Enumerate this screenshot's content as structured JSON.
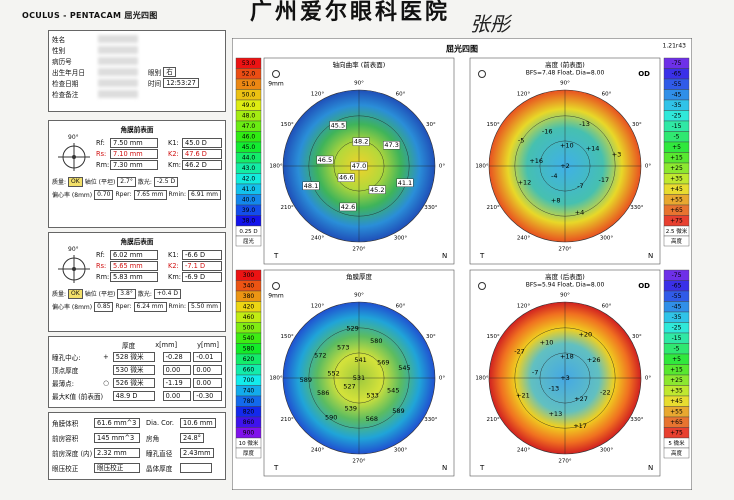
{
  "header": {
    "brand": "OCULUS - PENTACAM",
    "subtitle": "屈光四图",
    "hospital": "广州爱尔眼科医院",
    "signature": "张彤"
  },
  "patient": {
    "labels": [
      "姓名",
      "性别",
      "病历号",
      "出生年月日",
      "检查日期",
      "检查备注"
    ],
    "eye_label": "眼别",
    "eye": "右",
    "time_label": "时间",
    "time": "12:53:27"
  },
  "anterior": {
    "title": "角膜前表面",
    "axis": "90°",
    "rows": [
      [
        "Rf:",
        "7.50 mm",
        "K1:",
        "45.0 D"
      ],
      [
        "Rs:",
        "7.10 mm",
        "K2:",
        "47.6 D"
      ],
      [
        "Rm:",
        "7.30 mm",
        "Km:",
        "46.2 D"
      ],
      [
        "质量:",
        "OK",
        "轴位 (平坦)",
        "2.7°",
        "散光:",
        "-2.5 D"
      ],
      [
        "偏心率 (8mm)",
        "0.70",
        "Rper:",
        "7.65 mm",
        "Rmin:",
        "6.91 mm"
      ]
    ]
  },
  "posterior": {
    "title": "角膜后表面",
    "axis": "90°",
    "rows": [
      [
        "Rf:",
        "6.02 mm",
        "K1:",
        "-6.6 D"
      ],
      [
        "Rs:",
        "5.65 mm",
        "K2:",
        "-7.1 D"
      ],
      [
        "Rm:",
        "5.83 mm",
        "Km:",
        "-6.9 D"
      ],
      [
        "质量:",
        "OK",
        "轴位 (平坦)",
        "3.8°",
        "散光:",
        "+0.4 D"
      ],
      [
        "偏心率 (8mm)",
        "0.85",
        "Rper:",
        "6.24 mm",
        "Rmin:",
        "5.50 mm"
      ]
    ]
  },
  "pachymetry": {
    "header": [
      "厚度",
      "x[mm]",
      "y[mm]"
    ],
    "rows": [
      [
        "瞳孔中心:",
        "+",
        "528 微米",
        "-0.28",
        "-0.01"
      ],
      [
        "顶点厚度",
        "530 微米",
        "0.00",
        "0.00"
      ],
      [
        "最薄点:",
        "○",
        "526 微米",
        "-1.19",
        "0.00"
      ],
      [
        "最大K值 (前表面)",
        "48.9 D",
        "0.00",
        "-0.30"
      ]
    ]
  },
  "volumes": {
    "rows": [
      [
        "角膜体积",
        "61.6 mm^3",
        "Dia. Cor.",
        "10.6 mm"
      ],
      [
        "前房容积",
        "145 mm^3",
        "房角",
        "24.8°"
      ],
      [
        "前房深度 (内)",
        "2.32 mm",
        "瞳孔直径",
        "2.43mm"
      ],
      [
        "眼压校正",
        "眼压校正",
        "晶体厚度"
      ]
    ]
  },
  "display": {
    "title": "屈光四图",
    "version": "1.21r43",
    "compass": [
      "90°",
      "60°",
      "30°",
      "0°",
      "330°",
      "300°",
      "270°",
      "240°",
      "210°",
      "180°",
      "150°",
      "120°"
    ],
    "maps": [
      {
        "title": "轴向曲率 (前表面)",
        "zoom": "9mm",
        "left": "T",
        "right": "N",
        "scale": [
          "53.0",
          "52.0",
          "51.0",
          "50.0",
          "49.0",
          "48.0",
          "47.0",
          "46.0",
          "45.0",
          "44.0",
          "43.0",
          "42.0",
          "41.0",
          "40.0",
          "39.0",
          "38.0"
        ],
        "scale_notes": [
          "0.25 D",
          "屈光"
        ],
        "labels": [
          "47.0",
          "46.6",
          "48.2",
          "45.2",
          "46.5",
          "47.3",
          "42.6",
          "45.5",
          "41.1",
          "48.1"
        ]
      },
      {
        "title": "高度 (前表面)",
        "eye": "OD",
        "left": "T",
        "right": "N",
        "info": "BFS=7.48 Float, Dia=8.00",
        "scale": [
          "-75",
          "-65",
          "-55",
          "-45",
          "-35",
          "-25",
          "-15",
          "-5",
          "+5",
          "+15",
          "+25",
          "+35",
          "+45",
          "+55",
          "+65",
          "+75"
        ],
        "scale_notes": [
          "2.5 微米",
          "高度"
        ],
        "labels": [
          "+2",
          "-4",
          "+10",
          "-7",
          "+16",
          "+14",
          "+8",
          "-16",
          "-17",
          "+12",
          "-13",
          "+4",
          "-5",
          "+3"
        ]
      },
      {
        "title": "角膜厚度",
        "zoom": "9mm",
        "left": "T",
        "right": "N",
        "scale": [
          "300",
          "340",
          "380",
          "420",
          "460",
          "500",
          "540",
          "580",
          "620",
          "660",
          "700",
          "740",
          "780",
          "820",
          "860",
          "900"
        ],
        "scale_notes": [
          "10 微米",
          "厚度"
        ],
        "labels": [
          "531",
          "527",
          "541",
          "533",
          "552",
          "569",
          "539",
          "573",
          "545",
          "586",
          "580",
          "568",
          "572",
          "545",
          "590",
          "529",
          "589",
          "589"
        ]
      },
      {
        "title": "高度 (后表面)",
        "eye": "OD",
        "left": "T",
        "right": "N",
        "info": "BFS=5.94 Float, Dia=8.00",
        "scale": [
          "-75",
          "-65",
          "-55",
          "-45",
          "-35",
          "-25",
          "-15",
          "-5",
          "+5",
          "+15",
          "+25",
          "+35",
          "+45",
          "+55",
          "+65",
          "+75"
        ],
        "scale_notes": [
          "5 微米",
          "高度"
        ],
        "labels": [
          "+3",
          "-13",
          "+18",
          "+27",
          "-7",
          "+26",
          "+13",
          "+10",
          "-22",
          "+21",
          "+20",
          "+17",
          "-27"
        ]
      }
    ]
  }
}
